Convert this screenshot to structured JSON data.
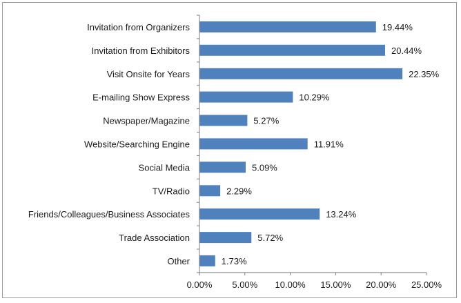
{
  "chart_data": {
    "type": "bar",
    "orientation": "horizontal",
    "title": "",
    "xlabel": "",
    "ylabel": "",
    "categories": [
      "Invitation from Organizers",
      "Invitation from Exhibitors",
      "Visit Onsite for Years",
      "E-mailing Show Express",
      "Newspaper/Magazine",
      "Website/Searching Engine",
      "Social Media",
      "TV/Radio",
      "Friends/Colleagues/Business Associates",
      "Trade Association",
      "Other"
    ],
    "values": [
      19.44,
      20.44,
      22.35,
      10.29,
      5.27,
      11.91,
      5.09,
      2.29,
      13.24,
      5.72,
      1.73
    ],
    "value_labels": [
      "19.44%",
      "20.44%",
      "22.35%",
      "10.29%",
      "5.27%",
      "11.91%",
      "5.09%",
      "2.29%",
      "13.24%",
      "5.72%",
      "1.73%"
    ],
    "xlim": [
      0,
      25
    ],
    "x_ticks": [
      0,
      5,
      10,
      15,
      20,
      25
    ],
    "x_tick_labels": [
      "0.00%",
      "5.00%",
      "10.00%",
      "15.00%",
      "20.00%",
      "25.00%"
    ],
    "grid": false,
    "legend": "none",
    "bar_color": "#4f81bd"
  }
}
